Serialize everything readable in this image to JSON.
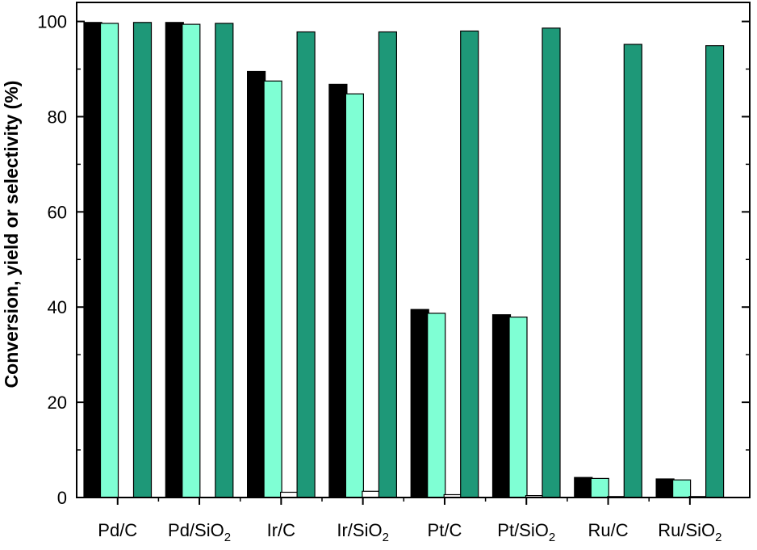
{
  "chart_data": {
    "type": "bar",
    "title": "",
    "xlabel": "",
    "ylabel": "Conversion, yield or selectivity (%)",
    "ylim": [
      0,
      104
    ],
    "yticks": [
      0,
      20,
      40,
      60,
      80,
      100
    ],
    "grid": false,
    "legend": "none",
    "categories": [
      {
        "base": "Pd/C",
        "sub": ""
      },
      {
        "base": "Pd/SiO",
        "sub": "2"
      },
      {
        "base": "Ir/C",
        "sub": ""
      },
      {
        "base": "Ir/SiO",
        "sub": "2"
      },
      {
        "base": "Pt/C",
        "sub": ""
      },
      {
        "base": "Pt/SiO",
        "sub": "2"
      },
      {
        "base": "Ru/C",
        "sub": ""
      },
      {
        "base": "Ru/SiO",
        "sub": "2"
      }
    ],
    "series": [
      {
        "color": "#000000",
        "values": [
          99.8,
          99.8,
          89.5,
          86.8,
          39.5,
          38.4,
          4.2,
          3.9
        ]
      },
      {
        "color": "#7fffd4",
        "values": [
          99.6,
          99.4,
          87.5,
          84.8,
          38.7,
          37.9,
          4.0,
          3.7
        ]
      },
      {
        "color": "#ffffff",
        "values": [
          0.0,
          0.0,
          1.1,
          1.3,
          0.6,
          0.4,
          0.2,
          0.2
        ]
      },
      {
        "color": "#1e9878",
        "values": [
          99.8,
          99.6,
          97.8,
          97.8,
          98.0,
          98.6,
          95.2,
          94.9
        ]
      }
    ]
  }
}
